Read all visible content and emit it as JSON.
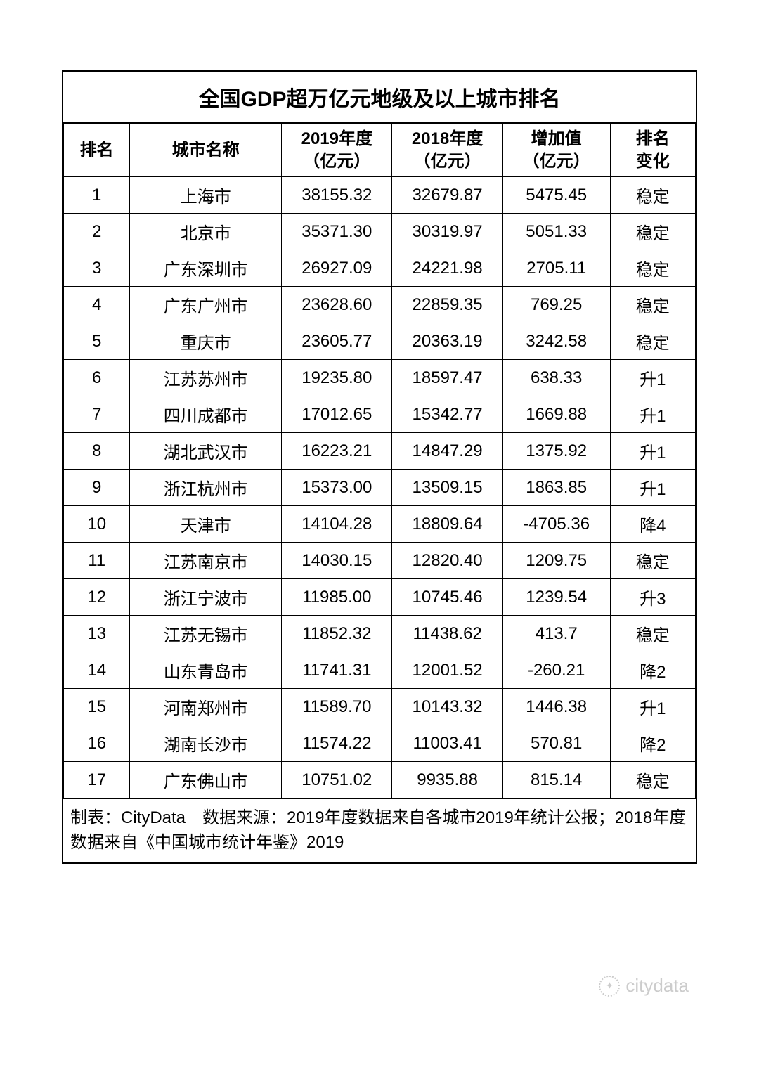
{
  "table": {
    "title": "全国GDP超万亿元地级及以上城市排名",
    "columns": {
      "rank": "排名",
      "city": "城市名称",
      "year2019_l1": "2019年度",
      "year2019_l2": "（亿元）",
      "year2018_l1": "2018年度",
      "year2018_l2": "（亿元）",
      "delta_l1": "增加值",
      "delta_l2": "（亿元）",
      "change_l1": "排名",
      "change_l2": "变化"
    },
    "rows": [
      {
        "rank": "1",
        "city": "上海市",
        "y2019": "38155.32",
        "y2018": "32679.87",
        "delta": "5475.45",
        "change": "稳定"
      },
      {
        "rank": "2",
        "city": "北京市",
        "y2019": "35371.30",
        "y2018": "30319.97",
        "delta": "5051.33",
        "change": "稳定"
      },
      {
        "rank": "3",
        "city": "广东深圳市",
        "y2019": "26927.09",
        "y2018": "24221.98",
        "delta": "2705.11",
        "change": "稳定"
      },
      {
        "rank": "4",
        "city": "广东广州市",
        "y2019": "23628.60",
        "y2018": "22859.35",
        "delta": "769.25",
        "change": "稳定"
      },
      {
        "rank": "5",
        "city": "重庆市",
        "y2019": "23605.77",
        "y2018": "20363.19",
        "delta": "3242.58",
        "change": "稳定"
      },
      {
        "rank": "6",
        "city": "江苏苏州市",
        "y2019": "19235.80",
        "y2018": "18597.47",
        "delta": "638.33",
        "change": "升1"
      },
      {
        "rank": "7",
        "city": "四川成都市",
        "y2019": "17012.65",
        "y2018": "15342.77",
        "delta": "1669.88",
        "change": "升1"
      },
      {
        "rank": "8",
        "city": "湖北武汉市",
        "y2019": "16223.21",
        "y2018": "14847.29",
        "delta": "1375.92",
        "change": "升1"
      },
      {
        "rank": "9",
        "city": "浙江杭州市",
        "y2019": "15373.00",
        "y2018": "13509.15",
        "delta": "1863.85",
        "change": "升1"
      },
      {
        "rank": "10",
        "city": "天津市",
        "y2019": "14104.28",
        "y2018": "18809.64",
        "delta": "-4705.36",
        "change": "降4"
      },
      {
        "rank": "11",
        "city": "江苏南京市",
        "y2019": "14030.15",
        "y2018": "12820.40",
        "delta": "1209.75",
        "change": "稳定"
      },
      {
        "rank": "12",
        "city": "浙江宁波市",
        "y2019": "11985.00",
        "y2018": "10745.46",
        "delta": "1239.54",
        "change": "升3"
      },
      {
        "rank": "13",
        "city": "江苏无锡市",
        "y2019": "11852.32",
        "y2018": "11438.62",
        "delta": "413.7",
        "change": "稳定"
      },
      {
        "rank": "14",
        "city": "山东青岛市",
        "y2019": "11741.31",
        "y2018": "12001.52",
        "delta": "-260.21",
        "change": "降2"
      },
      {
        "rank": "15",
        "city": "河南郑州市",
        "y2019": "11589.70",
        "y2018": "10143.32",
        "delta": "1446.38",
        "change": "升1"
      },
      {
        "rank": "16",
        "city": "湖南长沙市",
        "y2019": "11574.22",
        "y2018": "11003.41",
        "delta": "570.81",
        "change": "降2"
      },
      {
        "rank": "17",
        "city": "广东佛山市",
        "y2019": "10751.02",
        "y2018": "9935.88",
        "delta": "815.14",
        "change": "稳定"
      }
    ],
    "footer": "制表：CityData　数据来源：2019年度数据来自各城市2019年统计公报；2018年度数据来自《中国城市统计年鉴》2019"
  },
  "watermark": {
    "text": "citydata"
  },
  "style": {
    "border_color": "#000000",
    "background_color": "#ffffff",
    "title_fontsize": 30,
    "cell_fontsize": 24,
    "watermark_color": "#cccccc"
  }
}
